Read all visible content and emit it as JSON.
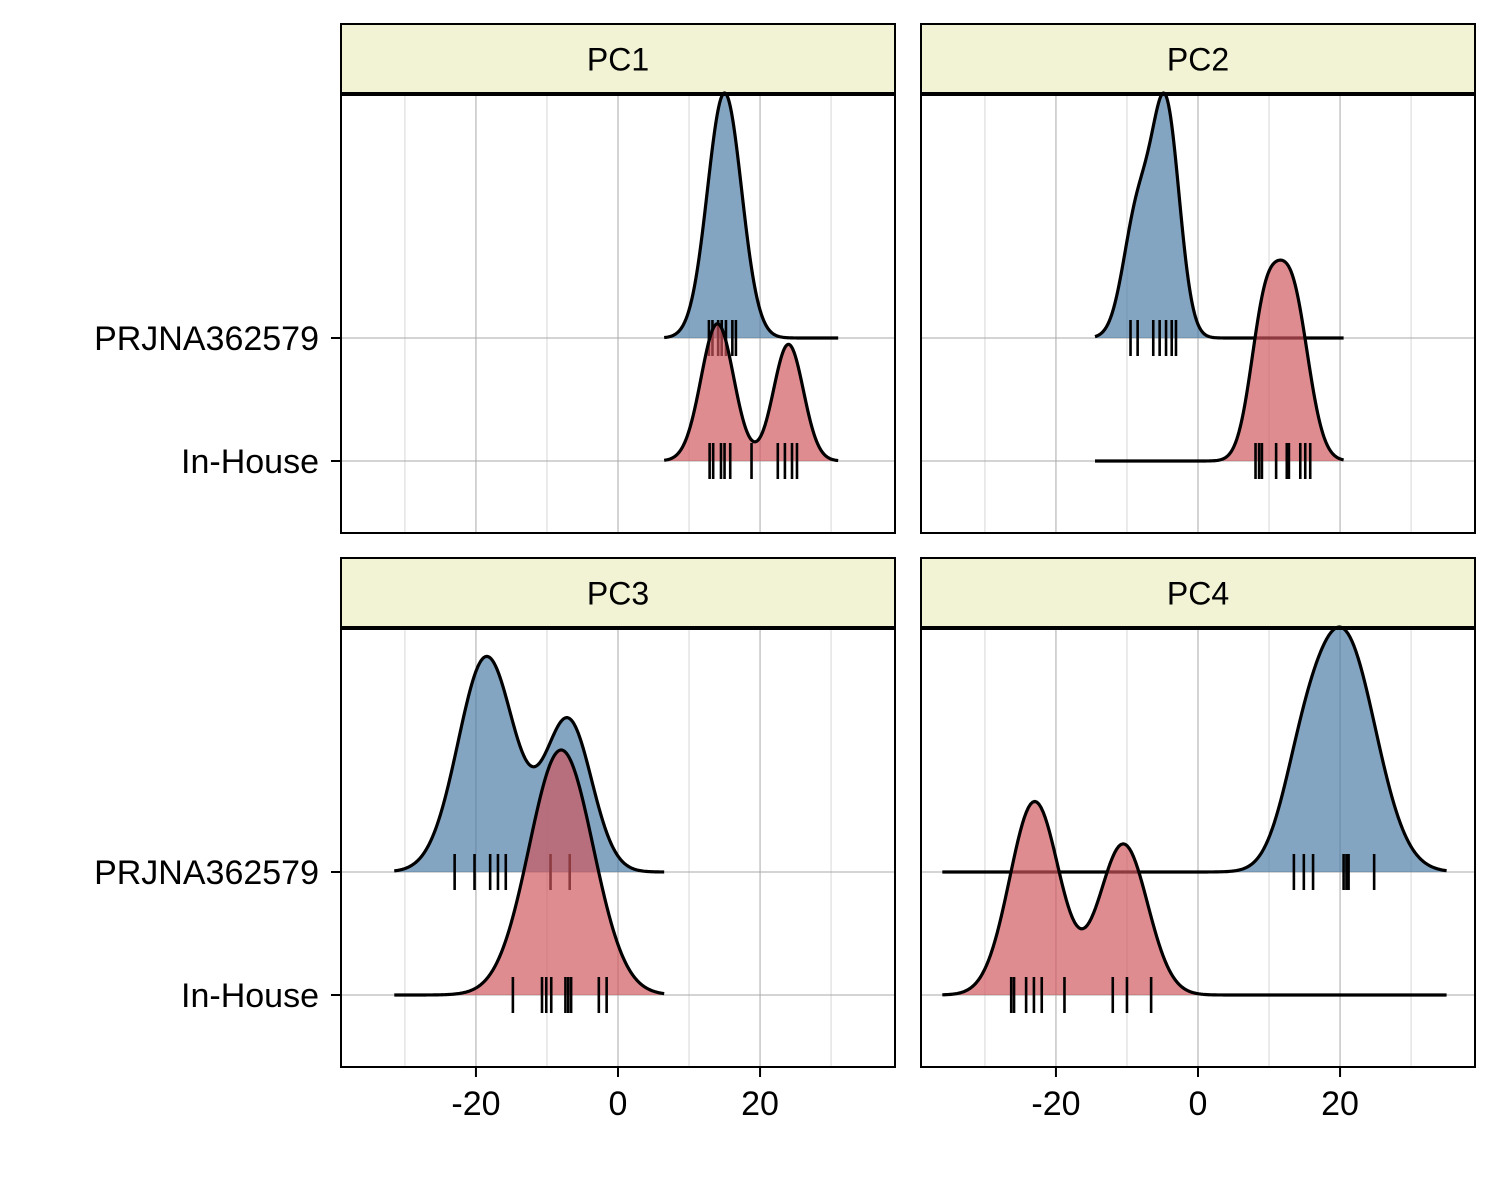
{
  "chart_data": {
    "type": "ridgeline",
    "x_ticks": [
      -20,
      0,
      20
    ],
    "xlim": [
      -39,
      39
    ],
    "categories": [
      "PRJNA362579",
      "In-House"
    ],
    "colors": {
      "PRJNA362579": "#4a7aa5",
      "In-House": "#d0555d",
      "strip_fill": "#f2f2d4"
    },
    "panels": [
      {
        "title": "PC1",
        "series": [
          {
            "group": "PRJNA362579",
            "range": [
              6.5,
              31
            ],
            "components": [
              [
                15,
                2.4,
                1.0
              ]
            ],
            "peak": 1.0,
            "rugs": [
              12.8,
              13.3,
              14.1,
              14.6,
              15.2,
              16.1,
              16.6
            ]
          },
          {
            "group": "In-House",
            "range": [
              6.5,
              31
            ],
            "components": [
              [
                14,
                2.3,
                1.0
              ],
              [
                24,
                2.1,
                0.85
              ]
            ],
            "peak": 0.56,
            "rugs": [
              12.9,
              13.4,
              14.5,
              15.0,
              15.8,
              18.8,
              22.5,
              23.5,
              24.5,
              25.2
            ]
          }
        ]
      },
      {
        "title": "PC2",
        "series": [
          {
            "group": "PRJNA362579",
            "range": [
              -14.5,
              20.5
            ],
            "components": [
              [
                -4.5,
                1.9,
                1.0
              ],
              [
                -8.5,
                2.0,
                0.55
              ]
            ],
            "peak": 1.0,
            "rugs": [
              -9.5,
              -8.5,
              -6.3,
              -5.4,
              -4.5,
              -3.7,
              -3.1
            ]
          },
          {
            "group": "In-House",
            "range": [
              -14.5,
              20.5
            ],
            "components": [
              [
                9.3,
                2.0,
                0.8
              ],
              [
                13.2,
                2.3,
                1.0
              ]
            ],
            "peak": 0.82,
            "rugs": [
              8.1,
              8.6,
              9.0,
              11.0,
              12.5,
              12.8,
              14.4,
              15.1,
              15.8
            ]
          }
        ]
      },
      {
        "title": "PC3",
        "series": [
          {
            "group": "PRJNA362579",
            "range": [
              -31.5,
              6.5
            ],
            "components": [
              [
                -18.5,
                4.0,
                1.0
              ],
              [
                -7.0,
                3.3,
                0.7
              ]
            ],
            "peak": 0.88,
            "rugs": [
              -23.0,
              -20.2,
              -18.0,
              -16.9,
              -15.8,
              -9.5,
              -6.8
            ]
          },
          {
            "group": "In-House",
            "range": [
              -31.5,
              6.5
            ],
            "components": [
              [
                -8.0,
                4.5,
                1.0
              ]
            ],
            "peak": 1.0,
            "rugs": [
              -14.8,
              -10.7,
              -10.1,
              -9.4,
              -7.4,
              -7.0,
              -6.6,
              -2.7,
              -1.6
            ]
          }
        ]
      },
      {
        "title": "PC4",
        "series": [
          {
            "group": "PRJNA362579",
            "range": [
              -36,
              35
            ],
            "components": [
              [
                20.5,
                4.5,
                1.0
              ],
              [
                14.5,
                3.0,
                0.25
              ]
            ],
            "peak": 1.0,
            "rugs": [
              13.5,
              14.9,
              16.2,
              20.5,
              20.9,
              21.2,
              24.8
            ]
          },
          {
            "group": "In-House",
            "range": [
              -36,
              35
            ],
            "components": [
              [
                -23.0,
                3.5,
                1.0
              ],
              [
                -10.5,
                3.4,
                0.78
              ]
            ],
            "peak": 0.79,
            "rugs": [
              -26.3,
              -25.9,
              -24.2,
              -23.1,
              -22.0,
              -18.8,
              -12.0,
              -10.0,
              -6.6
            ]
          }
        ]
      }
    ]
  }
}
